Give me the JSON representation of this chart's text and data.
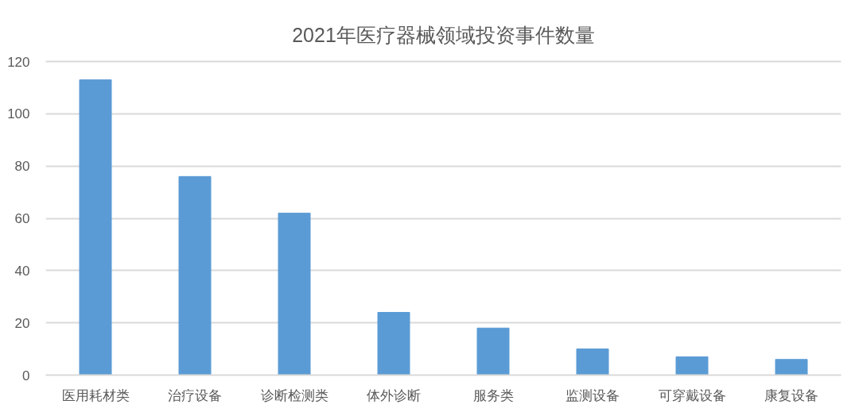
{
  "chart_data": {
    "type": "bar",
    "title": "2021年医疗器械领域投资事件数量",
    "categories": [
      "医用耗材类",
      "治疗设备",
      "诊断检测类",
      "体外诊断",
      "服务类",
      "监测设备",
      "可穿戴设备",
      "康复设备"
    ],
    "values": [
      113,
      76,
      62,
      24,
      18,
      10,
      7,
      6
    ],
    "color": "#5b9bd5",
    "ylim": [
      0,
      120
    ],
    "yticks": [
      0,
      20,
      40,
      60,
      80,
      100,
      120
    ],
    "grid": "y"
  }
}
